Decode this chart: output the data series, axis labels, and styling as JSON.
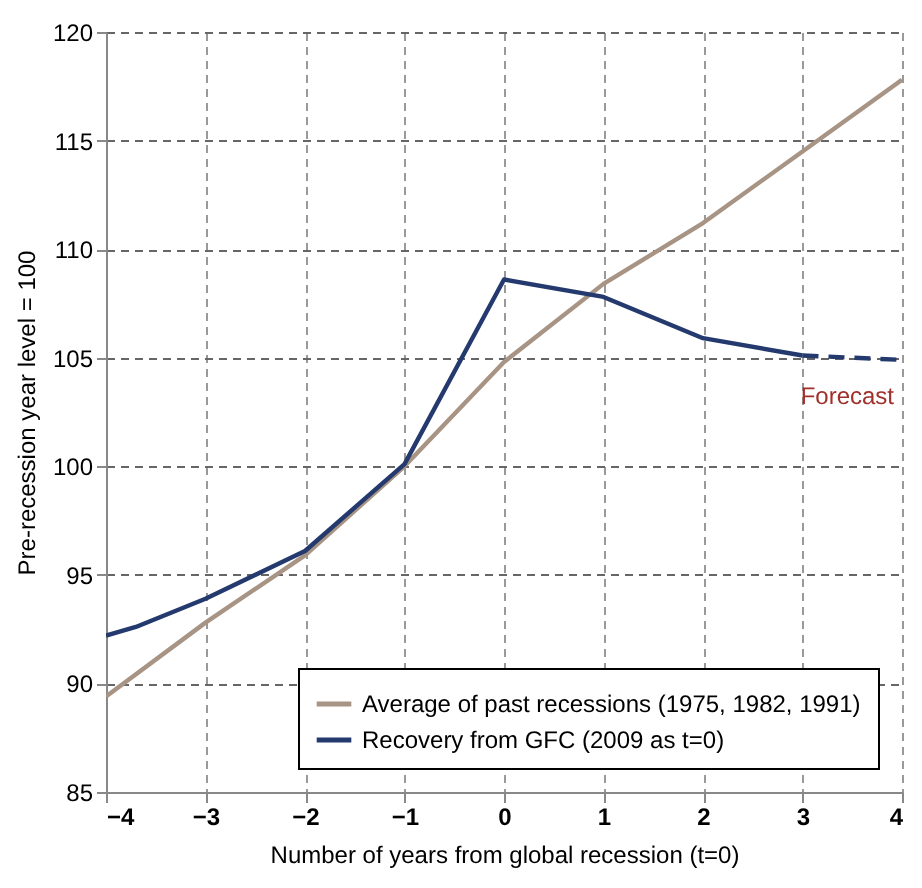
{
  "chart_data": {
    "type": "line",
    "xlabel": "Number of years from global recession (t=0)",
    "ylabel": "Pre-recession year level = 100",
    "xlim": [
      -4,
      4
    ],
    "xticks": [
      -4,
      -3,
      -2,
      -1,
      0,
      1,
      2,
      3,
      4
    ],
    "ylim": [
      85,
      120
    ],
    "yticks": [
      85,
      90,
      95,
      100,
      105,
      110,
      115,
      120
    ],
    "grid": true,
    "legend": "bottom right",
    "line_style": "solid",
    "marker": "none",
    "annotations": [
      "Forecast"
    ],
    "series": [
      {
        "name": "Average of past recessions (1975, 1982, 1991)",
        "color": "#a89484",
        "x": [
          -4,
          -3,
          -2,
          -1,
          0,
          1,
          2,
          3,
          4
        ],
        "values": [
          89.4,
          92.8,
          95.9,
          100,
          104.8,
          108.4,
          111.2,
          114.5,
          117.8
        ]
      },
      {
        "name": "Recovery from GFC (2009 as t=0)",
        "color": "#243a6e",
        "x": [
          -4,
          -3.7,
          -3,
          -2,
          -1,
          0,
          1,
          2,
          3
        ],
        "values": [
          92.2,
          92.6,
          93.9,
          96.1,
          100.1,
          108.6,
          107.8,
          105.9,
          105.1
        ]
      },
      {
        "color": "#243a6e",
        "line_style": "dashed",
        "x": [
          3,
          4
        ],
        "values": [
          105.1,
          104.9
        ]
      }
    ]
  }
}
